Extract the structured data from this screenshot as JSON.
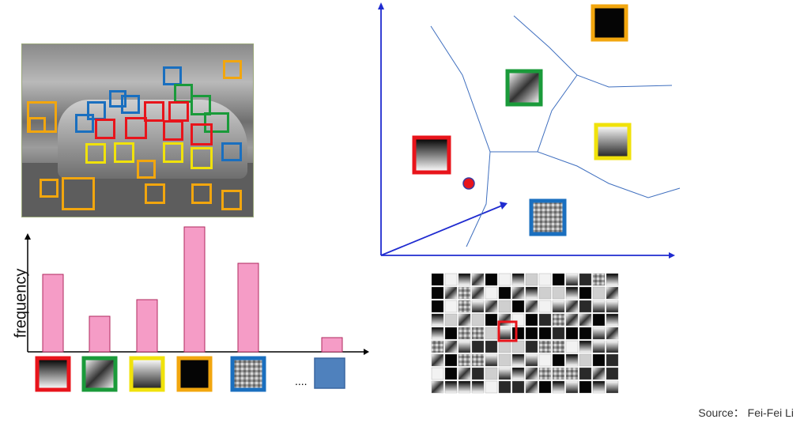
{
  "histogram": {
    "ylabel": "frequency",
    "ellipsis": "....",
    "bars": [
      {
        "value": 98,
        "patch": "gradient-vertical",
        "frame": "#e8141b"
      },
      {
        "value": 45,
        "patch": "gradient-diagonal",
        "frame": "#1a9a3a"
      },
      {
        "value": 66,
        "patch": "gradient-horizontal",
        "frame": "#f0e20b"
      },
      {
        "value": 158,
        "patch": "dark-square",
        "frame": "#f2a60e"
      },
      {
        "value": 112,
        "patch": "texture",
        "frame": "#1a6fbf"
      },
      {
        "value": 18,
        "patch": "solid-blue",
        "frame": "#4f81bd"
      }
    ],
    "bar_color": "#f59cc6",
    "bar_edge": "#b0285e"
  },
  "feature_space": {
    "axis_color": "#1f2bd0",
    "point_color": "#e8141b",
    "patch_frames": [
      "#e8141b",
      "#1a9a3a",
      "#f2a60e",
      "#f0e20b",
      "#1a6fbf"
    ]
  },
  "keypoint_colors": {
    "orange": "#f2a60e",
    "blue": "#1a6fbf",
    "green": "#1a9a3a",
    "red": "#e8141b",
    "yellow": "#f0e20b"
  },
  "source": "Source：  Fei-Fei Li"
}
